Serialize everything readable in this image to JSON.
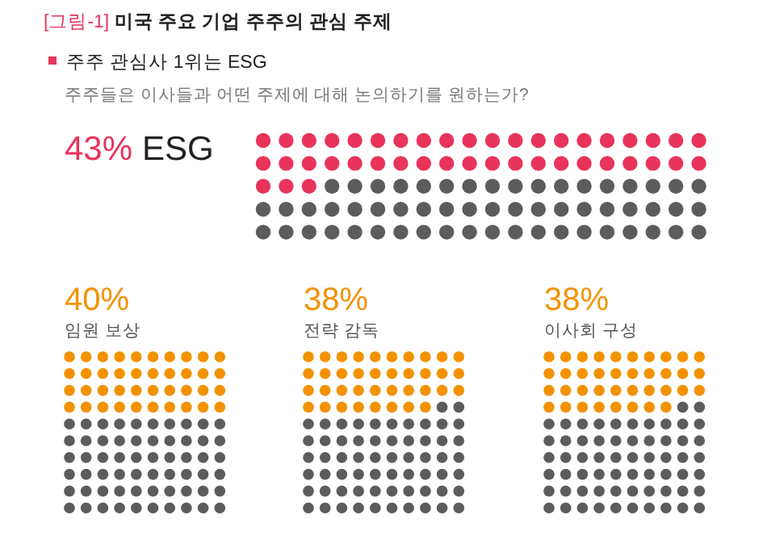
{
  "chart_data": [
    {
      "type": "other",
      "title": "[그림-1] 미국 주요 기업 주주의 관심 주제",
      "subtitle": "주주 관심사 1위는 ESG",
      "annotations": [
        "주주들은 이사들과 어떤 주제에 대해 논의하기를 원하는가?"
      ],
      "categories": [
        "ESG"
      ],
      "values": [
        43
      ],
      "value_labels": [
        "43%"
      ],
      "colors": [
        "#e8345a"
      ]
    },
    {
      "type": "other",
      "categories": [
        "임원 보상"
      ],
      "values": [
        40
      ],
      "value_labels": [
        "40%"
      ],
      "colors": [
        "#f39200"
      ]
    },
    {
      "type": "other",
      "categories": [
        "전략 감독"
      ],
      "values": [
        38
      ],
      "value_labels": [
        "38%"
      ],
      "colors": [
        "#f39200"
      ]
    },
    {
      "type": "other",
      "categories": [
        "이사회 구성"
      ],
      "values": [
        38
      ],
      "value_labels": [
        "38%"
      ],
      "colors": [
        "#f39200"
      ]
    }
  ]
}
